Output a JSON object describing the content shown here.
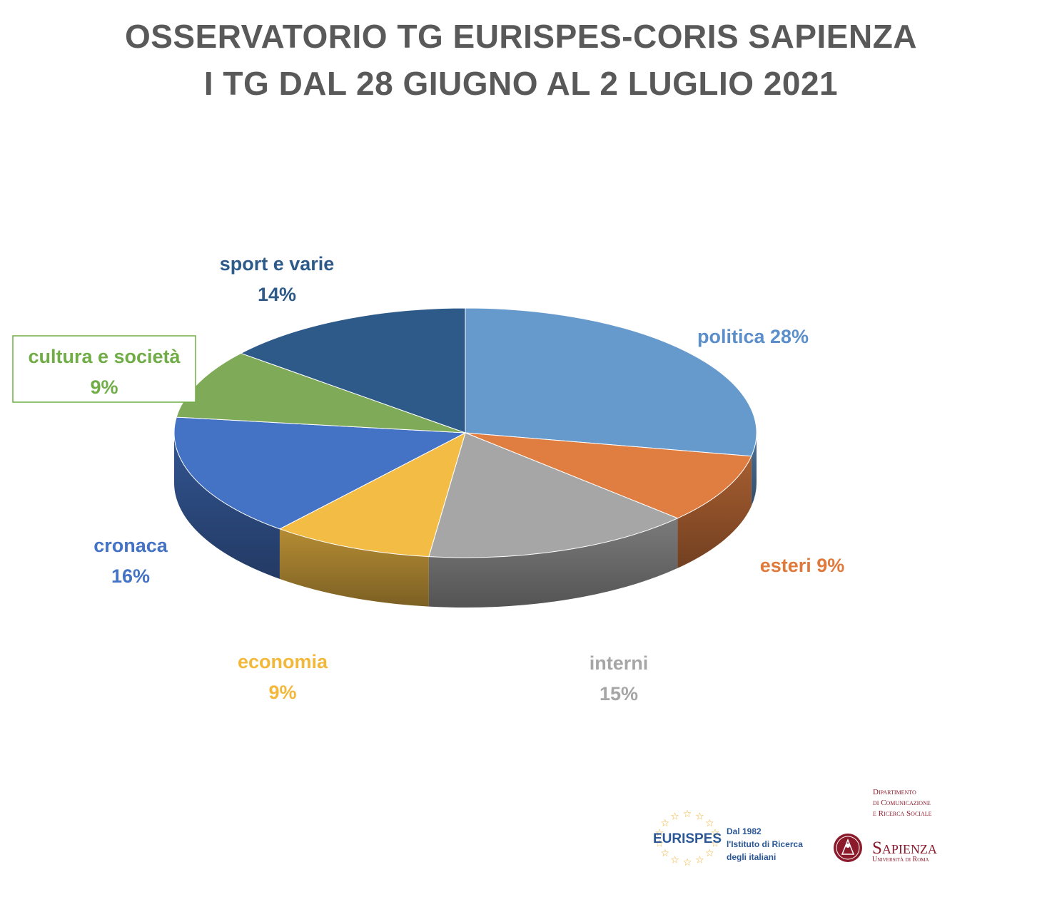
{
  "header": {
    "title_line1": "OSSERVATORIO TG EURISPES-CORIS SAPIENZA",
    "title_line2": "I TG DAL 28 GIUGNO AL 2 LUGLIO 2021"
  },
  "chart_data": {
    "type": "pie",
    "title": "OSSERVATORIO TG EURISPES-CORIS SAPIENZA — I TG DAL 28 GIUGNO AL 2 LUGLIO 2021",
    "three_d": true,
    "legend": "none",
    "data_labels": "category name and percent",
    "slices": [
      {
        "name": "politica",
        "value": 28,
        "label": "politica 28%",
        "color": "#6699CC",
        "label_color": "#5B8FCB"
      },
      {
        "name": "esteri",
        "value": 9,
        "label": "esteri 9%",
        "color": "#E07D40",
        "label_color": "#E07A3A"
      },
      {
        "name": "interni",
        "value": 15,
        "label": "interni 15%",
        "color": "#A6A6A6",
        "label_color": "#A6A6A6"
      },
      {
        "name": "economia",
        "value": 9,
        "label": "economia 9%",
        "color": "#F3BD45",
        "label_color": "#F3B83A"
      },
      {
        "name": "cronaca",
        "value": 16,
        "label": "cronaca 16%",
        "color": "#4472C4",
        "label_color": "#4472C4"
      },
      {
        "name": "cultura e società",
        "value": 9,
        "label": "cultura e società 9%",
        "color": "#7FAA58",
        "label_color": "#70AD47"
      },
      {
        "name": "sport e varie",
        "value": 14,
        "label": "sport e varie 14%",
        "color": "#2E5A8A",
        "label_color": "#2E5A8A"
      }
    ]
  },
  "labels": {
    "politica": "politica 28%",
    "esteri": "esteri 9%",
    "interni_name": "interni",
    "interni_pct": "15%",
    "economia_name": "economia",
    "economia_pct": "9%",
    "cronaca_name": "cronaca",
    "cronaca_pct": "16%",
    "cultura_name": "cultura e società",
    "cultura_pct": "9%",
    "sport_name": "sport e varie",
    "sport_pct": "14%"
  },
  "logos": {
    "eurispes_name": "EURISPES",
    "eurispes_tag1": "Dal 1982",
    "eurispes_tag2": "l'Istituto di Ricerca",
    "eurispes_tag3": "degli italiani",
    "dept_line1": "Dipartimento",
    "dept_line2": "di Comunicazione",
    "dept_line3": "e Ricerca Sociale",
    "sapienza_name": "Sapienza",
    "sapienza_sub": "Università di Roma"
  },
  "colors": {
    "title": "#595959",
    "eurispes_blue": "#2B5797",
    "eurispes_star": "#F2B134",
    "sapienza_red": "#8B1A2B"
  }
}
